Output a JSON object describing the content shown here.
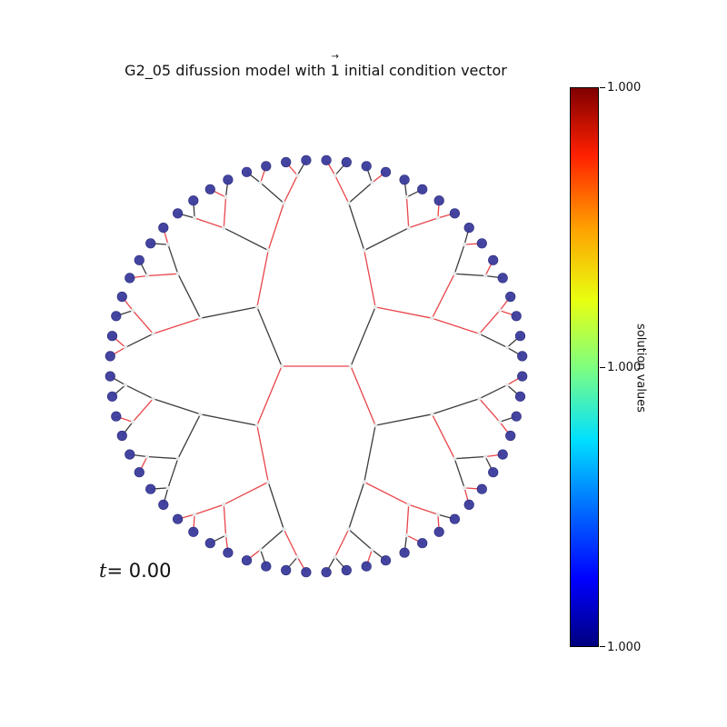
{
  "title": {
    "before": "G2_05 difussion model with ",
    "vector_symbol": "1",
    "after": " initial condition vector"
  },
  "colorbar": {
    "label": "solution values",
    "ticks": [
      "1.000",
      "1.000",
      "1.000"
    ],
    "colormap": "jet"
  },
  "time_label": {
    "variable": "t",
    "value": "= 0.00"
  },
  "graph": {
    "type": "binary tree",
    "depth": 6,
    "leaf_count": 64,
    "leaf_color": "#3a3a9c",
    "edge_colors": [
      "#e8454a",
      "#3c3c3c"
    ],
    "internal_node_color": "#e6e6e6"
  }
}
